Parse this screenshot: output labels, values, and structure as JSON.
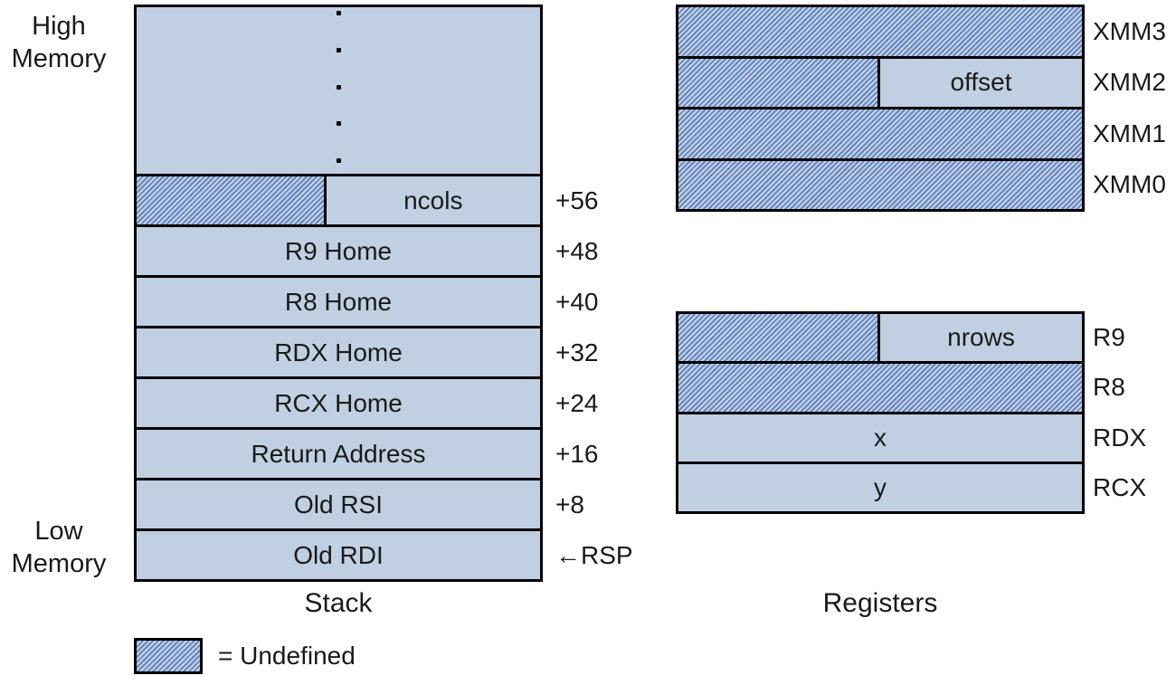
{
  "colors": {
    "fill": "#c0cfe2",
    "hatch_dark": "#6486bd",
    "hatch_light": "#c6d3e7",
    "border": "#000000",
    "text": "#1a1a1a",
    "background": "#ffffff"
  },
  "labels": {
    "high_memory": [
      "High",
      "Memory"
    ],
    "low_memory": [
      "Low",
      "Memory"
    ]
  },
  "stack": {
    "caption": "Stack",
    "rows": [
      {
        "label": "ncols",
        "offset": "+56"
      },
      {
        "label": "R9 Home",
        "offset": "+48"
      },
      {
        "label": "R8 Home",
        "offset": "+40"
      },
      {
        "label": "RDX Home",
        "offset": "+32"
      },
      {
        "label": "RCX Home",
        "offset": "+24"
      },
      {
        "label": "Return Address",
        "offset": "+16"
      },
      {
        "label": "Old RSI",
        "offset": "+8"
      },
      {
        "label": "Old RDI",
        "offset": "←RSP"
      }
    ]
  },
  "registers": {
    "caption": "Registers",
    "xmm": [
      {
        "name": "XMM3",
        "value": ""
      },
      {
        "name": "XMM2",
        "value": "offset"
      },
      {
        "name": "XMM1",
        "value": ""
      },
      {
        "name": "XMM0",
        "value": ""
      }
    ],
    "gp": [
      {
        "name": "R9",
        "value": "nrows"
      },
      {
        "name": "R8",
        "value": ""
      },
      {
        "name": "RDX",
        "value": "x"
      },
      {
        "name": "RCX",
        "value": "y"
      }
    ]
  },
  "legend": {
    "label": "= Undefined"
  }
}
